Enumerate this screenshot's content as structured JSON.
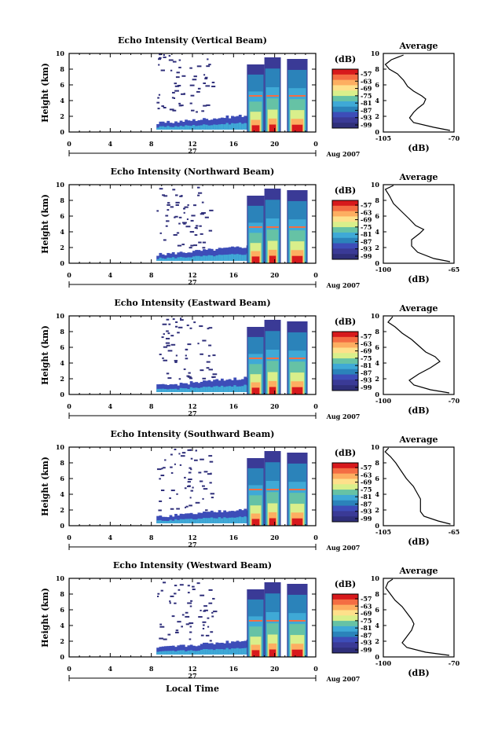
{
  "xlabel": "Local Time",
  "chart_data": [
    {
      "type": "heatmap",
      "title": "Echo Intensity (Vertical Beam)",
      "ylabel": "Height (km)",
      "x_ticks": [
        "0",
        "4",
        "8",
        "12",
        "16",
        "20",
        "0"
      ],
      "y_ticks": [
        "0",
        "2",
        "4",
        "6",
        "8",
        "10"
      ],
      "xlim": [
        0,
        24
      ],
      "ylim": [
        0,
        10
      ],
      "date_label": "27",
      "date_suffix": "Aug 2007",
      "colorbar": {
        "unit": "(dB)",
        "ticks": [
          "-57",
          "-63",
          "-69",
          "-75",
          "-81",
          "-87",
          "-93",
          "-99"
        ]
      },
      "profile": {
        "title": "Average",
        "xlabel": "(dB)",
        "x_ticks": [
          "-105",
          "-70"
        ],
        "xlim": [
          -105,
          -70
        ],
        "y_ticks": [
          "0",
          "2",
          "4",
          "6",
          "8",
          "10"
        ],
        "points": [
          [
            -72,
            0.2
          ],
          [
            -80,
            0.6
          ],
          [
            -90,
            1.2
          ],
          [
            -92,
            1.8
          ],
          [
            -90,
            2.5
          ],
          [
            -88,
            3.0
          ],
          [
            -85,
            3.6
          ],
          [
            -84,
            4.2
          ],
          [
            -86,
            4.6
          ],
          [
            -90,
            5.2
          ],
          [
            -93,
            5.8
          ],
          [
            -95,
            6.6
          ],
          [
            -98,
            7.4
          ],
          [
            -102,
            8.0
          ],
          [
            -104,
            8.6
          ],
          [
            -101,
            9.2
          ],
          [
            -95,
            9.8
          ]
        ]
      }
    },
    {
      "type": "heatmap",
      "title": "Echo Intensity (Northward Beam)",
      "ylabel": "Height (km)",
      "x_ticks": [
        "0",
        "4",
        "8",
        "12",
        "16",
        "20",
        "0"
      ],
      "y_ticks": [
        "0",
        "2",
        "4",
        "6",
        "8",
        "10"
      ],
      "xlim": [
        0,
        24
      ],
      "ylim": [
        0,
        10
      ],
      "date_label": "27",
      "date_suffix": "Aug 2007",
      "colorbar": {
        "unit": "(dB)",
        "ticks": [
          "-57",
          "-63",
          "-69",
          "-75",
          "-81",
          "-87",
          "-93",
          "-99"
        ]
      },
      "profile": {
        "title": "Average",
        "xlabel": "(dB)",
        "x_ticks": [
          "-100",
          "-65"
        ],
        "xlim": [
          -100,
          -65
        ],
        "y_ticks": [
          "0",
          "2",
          "4",
          "6",
          "8",
          "10"
        ],
        "points": [
          [
            -67,
            0.2
          ],
          [
            -75,
            0.6
          ],
          [
            -83,
            1.4
          ],
          [
            -86,
            2.2
          ],
          [
            -86,
            3.0
          ],
          [
            -82,
            3.8
          ],
          [
            -80,
            4.3
          ],
          [
            -84,
            4.8
          ],
          [
            -87,
            5.6
          ],
          [
            -91,
            6.6
          ],
          [
            -95,
            7.6
          ],
          [
            -97,
            8.6
          ],
          [
            -99,
            9.4
          ],
          [
            -95,
            9.9
          ]
        ]
      }
    },
    {
      "type": "heatmap",
      "title": "Echo Intensity (Eastward Beam)",
      "ylabel": "Height (km)",
      "x_ticks": [
        "0",
        "4",
        "8",
        "12",
        "16",
        "20",
        "0"
      ],
      "y_ticks": [
        "0",
        "2",
        "4",
        "6",
        "8",
        "10"
      ],
      "xlim": [
        0,
        24
      ],
      "ylim": [
        0,
        10
      ],
      "date_label": "27",
      "date_suffix": "Aug 2007",
      "colorbar": {
        "unit": "(dB)",
        "ticks": [
          "-57",
          "-63",
          "-69",
          "-75",
          "-81",
          "-87",
          "-93",
          "-99"
        ]
      },
      "profile": {
        "title": "Average",
        "xlabel": "(dB)",
        "x_ticks": [
          "-100",
          "-70"
        ],
        "xlim": [
          -100,
          -70
        ],
        "y_ticks": [
          "0",
          "2",
          "4",
          "6",
          "8",
          "10"
        ],
        "points": [
          [
            -72,
            0.2
          ],
          [
            -80,
            0.6
          ],
          [
            -87,
            1.2
          ],
          [
            -89,
            1.8
          ],
          [
            -85,
            2.6
          ],
          [
            -80,
            3.4
          ],
          [
            -76,
            4.2
          ],
          [
            -78,
            4.8
          ],
          [
            -82,
            5.4
          ],
          [
            -85,
            6.2
          ],
          [
            -88,
            7.0
          ],
          [
            -92,
            7.8
          ],
          [
            -95,
            8.6
          ],
          [
            -98,
            9.2
          ],
          [
            -96,
            9.9
          ]
        ]
      }
    },
    {
      "type": "heatmap",
      "title": "Echo Intensity (Southward Beam)",
      "ylabel": "Height (km)",
      "x_ticks": [
        "0",
        "4",
        "8",
        "12",
        "16",
        "20",
        "0"
      ],
      "y_ticks": [
        "0",
        "2",
        "4",
        "6",
        "8",
        "10"
      ],
      "xlim": [
        0,
        24
      ],
      "ylim": [
        0,
        10
      ],
      "date_label": "27",
      "date_suffix": "Aug 2007",
      "colorbar": {
        "unit": "(dB)",
        "ticks": [
          "-57",
          "-63",
          "-69",
          "-75",
          "-81",
          "-87",
          "-93",
          "-99"
        ]
      },
      "profile": {
        "title": "Average",
        "xlabel": "(dB)",
        "x_ticks": [
          "-105",
          "-65"
        ],
        "xlim": [
          -105,
          -65
        ],
        "y_ticks": [
          "0",
          "2",
          "4",
          "6",
          "8",
          "10"
        ],
        "points": [
          [
            -67,
            0.2
          ],
          [
            -74,
            0.6
          ],
          [
            -82,
            1.2
          ],
          [
            -84,
            1.8
          ],
          [
            -84,
            2.6
          ],
          [
            -84,
            3.4
          ],
          [
            -86,
            4.2
          ],
          [
            -88,
            5.0
          ],
          [
            -92,
            6.0
          ],
          [
            -95,
            7.0
          ],
          [
            -98,
            8.0
          ],
          [
            -101,
            8.8
          ],
          [
            -104,
            9.4
          ],
          [
            -102,
            9.9
          ]
        ]
      }
    },
    {
      "type": "heatmap",
      "title": "Echo Intensity (Westward Beam)",
      "ylabel": "Height (km)",
      "x_ticks": [
        "0",
        "4",
        "8",
        "12",
        "16",
        "20",
        "0"
      ],
      "y_ticks": [
        "0",
        "2",
        "4",
        "6",
        "8",
        "10"
      ],
      "xlim": [
        0,
        24
      ],
      "ylim": [
        0,
        10
      ],
      "date_label": "27",
      "date_suffix": "Aug 2007",
      "colorbar": {
        "unit": "(dB)",
        "ticks": [
          "-57",
          "-63",
          "-69",
          "-75",
          "-81",
          "-87",
          "-93",
          "-99"
        ]
      },
      "profile": {
        "title": "Average",
        "xlabel": "(dB)",
        "x_ticks": [
          "-100",
          "-70"
        ],
        "xlim": [
          -100,
          -70
        ],
        "y_ticks": [
          "0",
          "2",
          "4",
          "6",
          "8",
          "10"
        ],
        "points": [
          [
            -72,
            0.2
          ],
          [
            -82,
            0.6
          ],
          [
            -90,
            1.2
          ],
          [
            -92,
            1.8
          ],
          [
            -90,
            2.6
          ],
          [
            -88,
            3.4
          ],
          [
            -87,
            4.2
          ],
          [
            -88,
            4.8
          ],
          [
            -90,
            5.6
          ],
          [
            -92,
            6.4
          ],
          [
            -95,
            7.2
          ],
          [
            -97,
            8.0
          ],
          [
            -99,
            8.8
          ],
          [
            -98,
            9.5
          ],
          [
            -96,
            9.9
          ]
        ]
      }
    }
  ]
}
